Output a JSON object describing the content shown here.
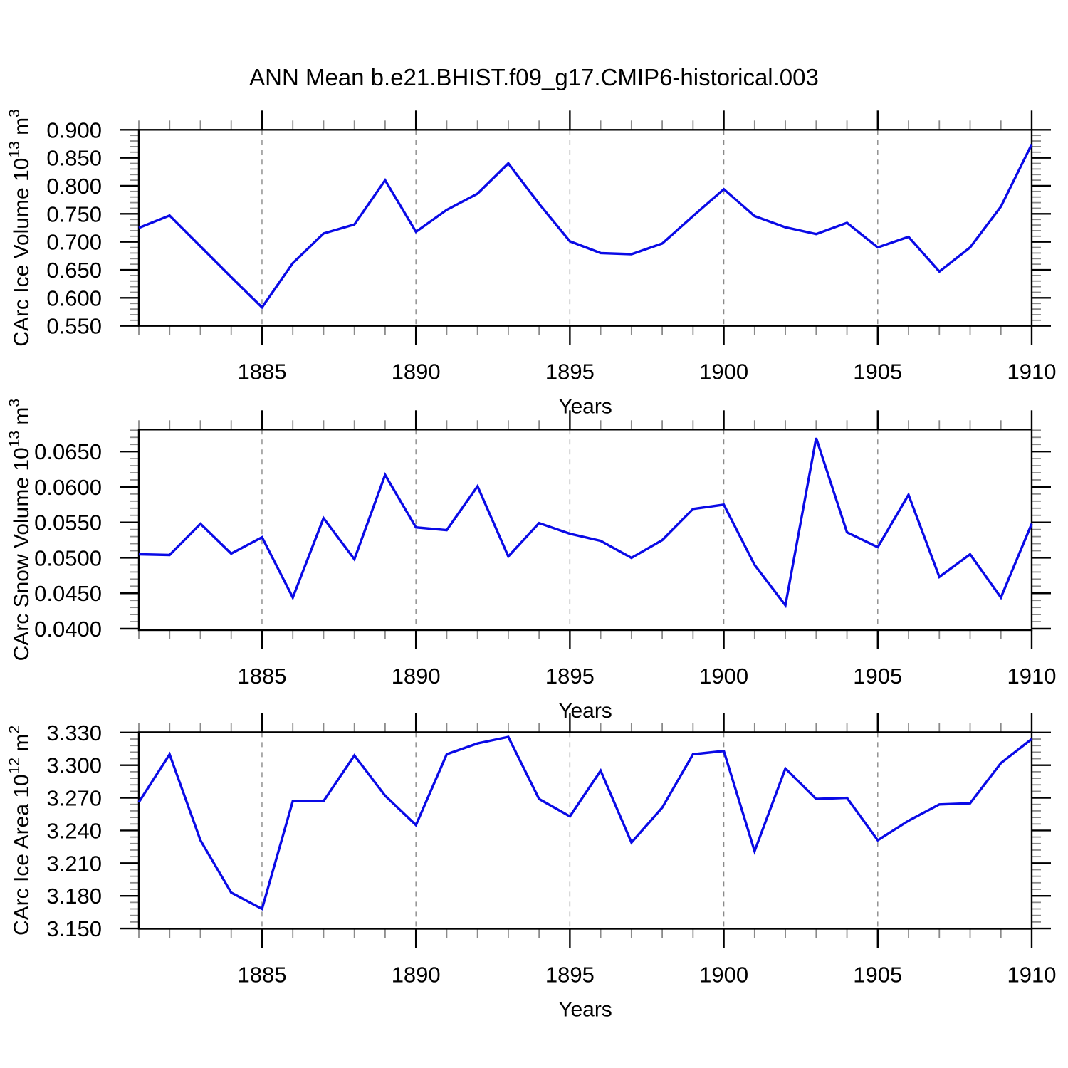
{
  "title": "ANN Mean b.e21.BHIST.f09_g17.CMIP6-historical.003",
  "colors": {
    "line": "#0a0ae6",
    "grid": "#8a8a8a",
    "frame": "#000000",
    "text": "#000000",
    "background": "#ffffff"
  },
  "chart_data": {
    "type": "line",
    "xlabel": "Years",
    "xlim": [
      1881,
      1910
    ],
    "x": [
      1881,
      1882,
      1883,
      1884,
      1885,
      1886,
      1887,
      1888,
      1889,
      1890,
      1891,
      1892,
      1893,
      1894,
      1895,
      1896,
      1897,
      1898,
      1899,
      1900,
      1901,
      1902,
      1903,
      1904,
      1905,
      1906,
      1907,
      1908,
      1909,
      1910
    ],
    "x_major_ticks": [
      {
        "v": 1885,
        "label": "1885"
      },
      {
        "v": 1890,
        "label": "1890"
      },
      {
        "v": 1895,
        "label": "1895"
      },
      {
        "v": 1900,
        "label": "1900"
      },
      {
        "v": 1905,
        "label": "1905"
      },
      {
        "v": 1910,
        "label": "1910"
      }
    ],
    "grid_years": [
      1885,
      1890,
      1895,
      1900,
      1905
    ],
    "panels": [
      {
        "id": "ice-volume",
        "ylabel": "CArc Ice Volume 10^13 m^3",
        "ylabel_parts": [
          {
            "t": "CArc Ice Volume 10"
          },
          {
            "t": "13",
            "sup": true
          },
          {
            "t": " m"
          },
          {
            "t": "3",
            "sup": true
          }
        ],
        "ylim": [
          0.55,
          0.9
        ],
        "y_minor_step": 0.01,
        "yticks": [
          {
            "v": 0.55,
            "label": "0.550"
          },
          {
            "v": 0.6,
            "label": "0.600"
          },
          {
            "v": 0.65,
            "label": "0.650"
          },
          {
            "v": 0.7,
            "label": "0.700"
          },
          {
            "v": 0.75,
            "label": "0.750"
          },
          {
            "v": 0.8,
            "label": "0.800"
          },
          {
            "v": 0.85,
            "label": "0.850"
          },
          {
            "v": 0.9,
            "label": "0.900"
          }
        ],
        "values": [
          0.725,
          0.747,
          0.692,
          0.637,
          0.583,
          0.662,
          0.715,
          0.731,
          0.81,
          0.718,
          0.757,
          0.786,
          0.84,
          0.768,
          0.701,
          0.68,
          0.678,
          0.697,
          0.746,
          0.794,
          0.746,
          0.726,
          0.714,
          0.734,
          0.69,
          0.709,
          0.647,
          0.69,
          0.763,
          0.874
        ]
      },
      {
        "id": "snow-volume",
        "ylabel": "CArc Snow Volume 10^13 m^3",
        "ylabel_parts": [
          {
            "t": "CArc Snow Volume 10"
          },
          {
            "t": "13",
            "sup": true
          },
          {
            "t": " m"
          },
          {
            "t": "3",
            "sup": true
          }
        ],
        "ylim": [
          0.0398,
          0.0681
        ],
        "y_minor_step": 0.001,
        "yticks": [
          {
            "v": 0.04,
            "label": "0.0400"
          },
          {
            "v": 0.045,
            "label": "0.0450"
          },
          {
            "v": 0.05,
            "label": "0.0500"
          },
          {
            "v": 0.055,
            "label": "0.0550"
          },
          {
            "v": 0.06,
            "label": "0.0600"
          },
          {
            "v": 0.065,
            "label": "0.0650"
          }
        ],
        "values": [
          0.0505,
          0.0504,
          0.0548,
          0.0506,
          0.0529,
          0.0444,
          0.0556,
          0.0498,
          0.0617,
          0.0543,
          0.0539,
          0.0601,
          0.0502,
          0.0549,
          0.0534,
          0.0524,
          0.05,
          0.0525,
          0.0569,
          0.0575,
          0.049,
          0.0433,
          0.0669,
          0.0536,
          0.0515,
          0.0589,
          0.0473,
          0.0505,
          0.0444,
          0.0548
        ]
      },
      {
        "id": "ice-area",
        "ylabel": "CArc Ice Area 10^12 m^2",
        "ylabel_parts": [
          {
            "t": "CArc Ice Area 10"
          },
          {
            "t": "12",
            "sup": true
          },
          {
            "t": " m"
          },
          {
            "t": "2",
            "sup": true
          }
        ],
        "ylim": [
          3.1497,
          3.3303
        ],
        "y_minor_step": 0.006,
        "yticks": [
          {
            "v": 3.15,
            "label": "3.150"
          },
          {
            "v": 3.18,
            "label": "3.180"
          },
          {
            "v": 3.21,
            "label": "3.210"
          },
          {
            "v": 3.24,
            "label": "3.240"
          },
          {
            "v": 3.27,
            "label": "3.270"
          },
          {
            "v": 3.3,
            "label": "3.300"
          },
          {
            "v": 3.33,
            "label": "3.330"
          }
        ],
        "values": [
          3.266,
          3.31,
          3.231,
          3.183,
          3.168,
          3.267,
          3.267,
          3.309,
          3.272,
          3.245,
          3.31,
          3.32,
          3.326,
          3.269,
          3.253,
          3.295,
          3.229,
          3.261,
          3.31,
          3.313,
          3.221,
          3.297,
          3.269,
          3.27,
          3.231,
          3.249,
          3.264,
          3.265,
          3.302,
          3.324
        ]
      }
    ]
  }
}
